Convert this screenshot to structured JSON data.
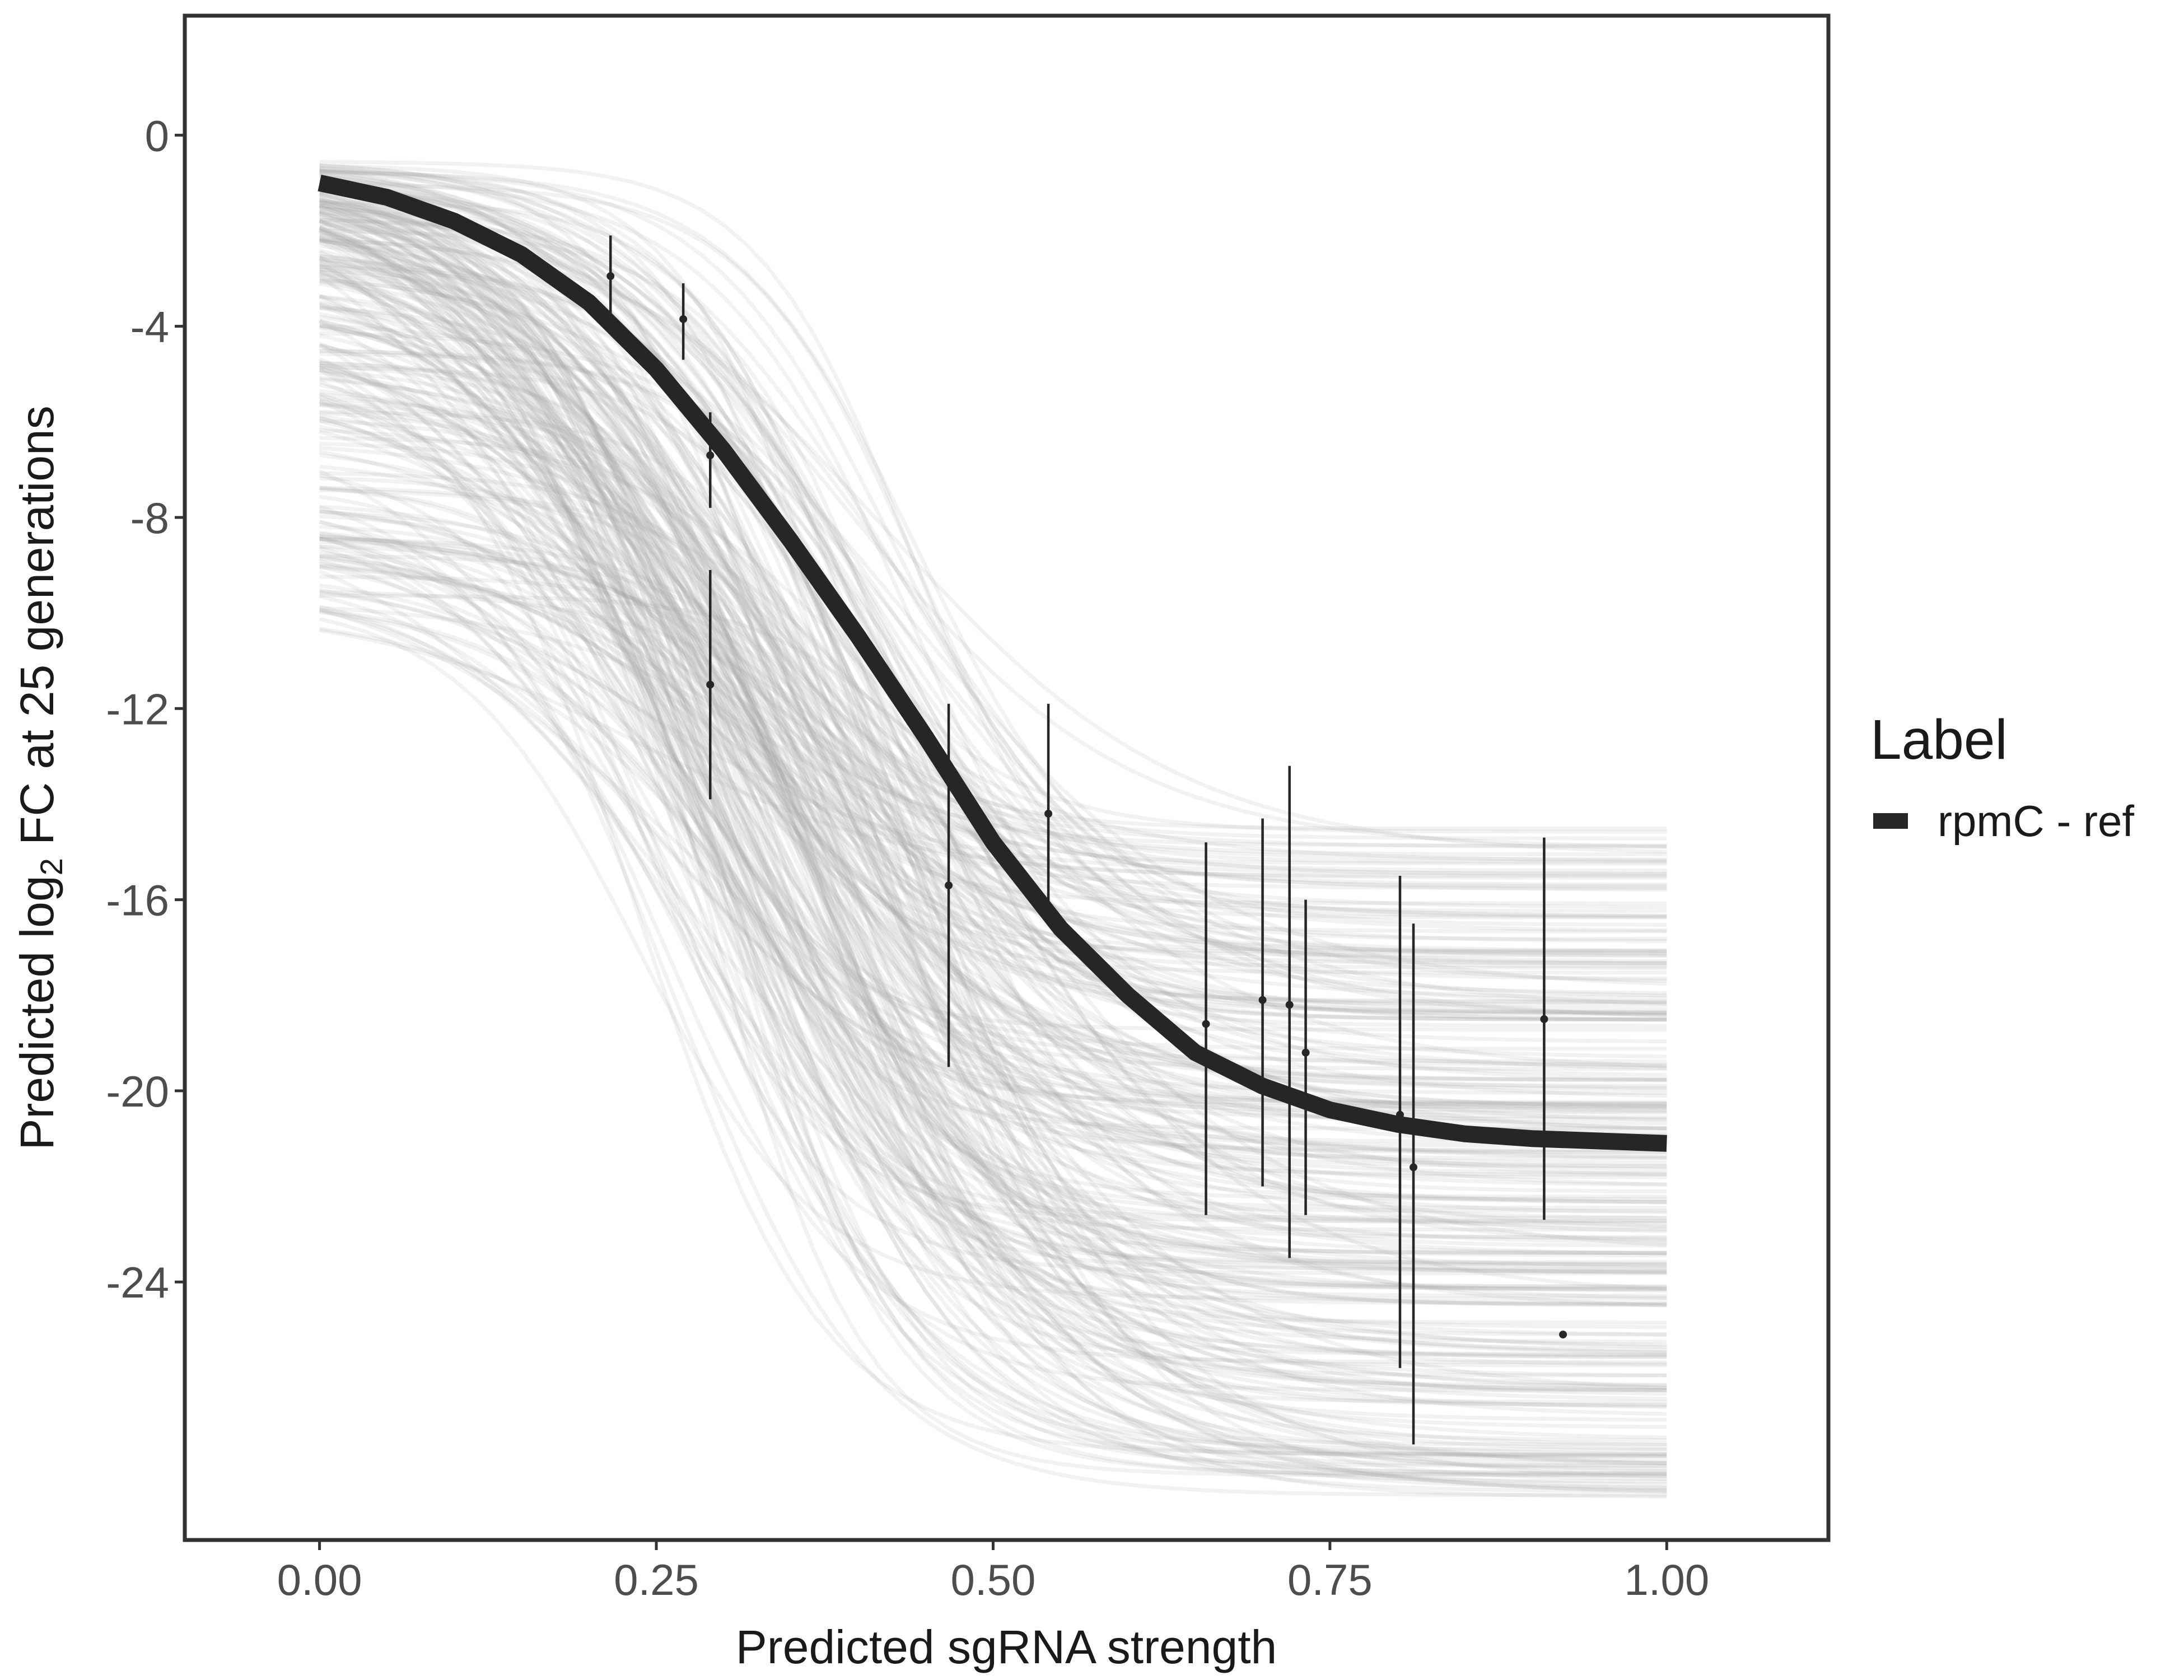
{
  "chart_data": {
    "type": "line",
    "xlabel": "Predicted sgRNA strength",
    "ylabel_prefix": "Predicted  log",
    "ylabel_sub": "2",
    "ylabel_suffix": " FC at 25 generations",
    "xlim": [
      -0.1,
      1.12
    ],
    "ylim": [
      -29.4,
      2.5
    ],
    "x_ticks": [
      0,
      0.25,
      0.5,
      0.75,
      1
    ],
    "x_tick_labels": [
      "0.00",
      "0.25",
      "0.50",
      "0.75",
      "1.00"
    ],
    "y_ticks": [
      0,
      -4,
      -8,
      -12,
      -16,
      -20,
      -24
    ],
    "y_tick_labels": [
      "0",
      "-4",
      "-8",
      "-12",
      "-16",
      "-20",
      "-24"
    ],
    "grid": false,
    "legend": {
      "title": "Label",
      "position": "right",
      "entries": [
        {
          "label": "rpmC - ref",
          "color": "#262626"
        }
      ]
    },
    "fit": {
      "name": "rpmC - ref",
      "color": "#262626",
      "x": [
        0,
        0.05,
        0.1,
        0.15,
        0.2,
        0.25,
        0.3,
        0.35,
        0.4,
        0.45,
        0.5,
        0.55,
        0.6,
        0.65,
        0.7,
        0.75,
        0.8,
        0.85,
        0.9,
        0.95,
        1
      ],
      "y": [
        -1.0,
        -1.3,
        -1.8,
        -2.5,
        -3.5,
        -4.9,
        -6.6,
        -8.5,
        -10.5,
        -12.6,
        -14.8,
        -16.6,
        -18.0,
        -19.2,
        -19.9,
        -20.4,
        -20.7,
        -20.9,
        -21.0,
        -21.05,
        -21.1
      ]
    },
    "posterior_samples": {
      "color": "#a6a6a6",
      "count": 260,
      "x_range": [
        0,
        1
      ],
      "start_range": [
        -10,
        -0.5
      ],
      "end_range": [
        -28.5,
        -14.5
      ]
    },
    "points": {
      "color": "#262626",
      "x": [
        0.216,
        0.27,
        0.29,
        0.29,
        0.467,
        0.541,
        0.658,
        0.7,
        0.72,
        0.732,
        0.802,
        0.812,
        0.909,
        0.923
      ],
      "y": [
        -2.95,
        -3.85,
        -6.7,
        -11.5,
        -15.7,
        -14.2,
        -18.6,
        -18.1,
        -18.2,
        -19.2,
        -20.5,
        -21.6,
        -18.5,
        -25.1
      ],
      "ymin": [
        -3.8,
        -4.7,
        -7.8,
        -13.9,
        -19.5,
        -16.5,
        -22.6,
        -22.0,
        -23.5,
        -22.6,
        -25.8,
        -27.4,
        -22.7,
        -25.1
      ],
      "ymax": [
        -2.1,
        -3.1,
        -5.8,
        -9.1,
        -11.9,
        -11.9,
        -14.8,
        -14.3,
        -13.2,
        -16.0,
        -15.5,
        -16.5,
        -14.7,
        -25.1
      ]
    }
  }
}
